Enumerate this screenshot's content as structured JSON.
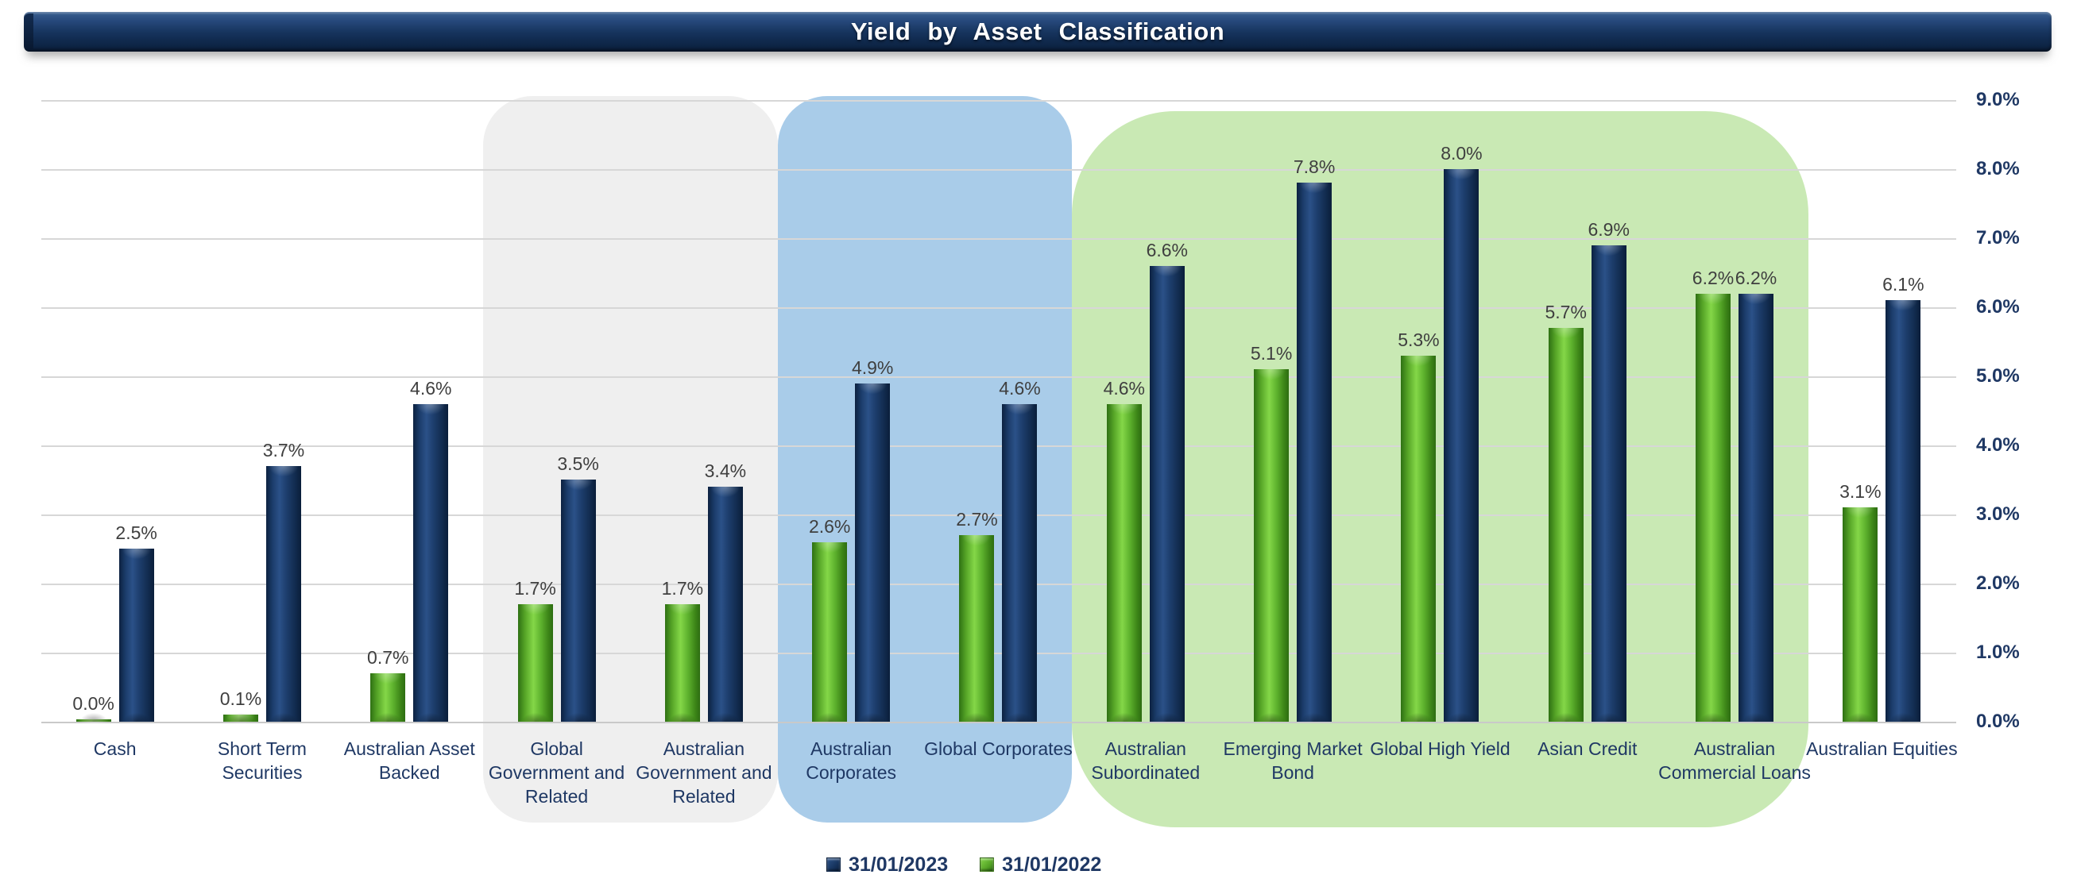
{
  "title": "Yield by Asset Classification",
  "chart_data": {
    "type": "bar",
    "title": "Yield by Asset Classification",
    "categories": [
      "Cash",
      "Short Term Securities",
      "Australian Asset Backed",
      "Global Government and Related",
      "Australian Government and Related",
      "Australian Corporates",
      "Global Corporates",
      "Australian Subordinated",
      "Emerging Market Bond",
      "Global High Yield",
      "Asian Credit",
      "Australian Commercial Loans",
      "Australian Equities"
    ],
    "series": [
      {
        "name": "31/01/2023",
        "color": "#17355f",
        "values": [
          2.5,
          3.7,
          4.6,
          3.5,
          3.4,
          4.9,
          4.6,
          6.6,
          7.8,
          8.0,
          6.9,
          6.2,
          6.1
        ],
        "value_labels": [
          "2.5%",
          "3.7%",
          "4.6%",
          "3.5%",
          "3.4%",
          "4.9%",
          "4.6%",
          "6.6%",
          "7.8%",
          "8.0%",
          "6.9%",
          "6.2%",
          "6.1%"
        ]
      },
      {
        "name": "31/01/2022",
        "color": "#56a527",
        "values": [
          0.0,
          0.1,
          0.7,
          1.7,
          1.7,
          2.6,
          2.7,
          4.6,
          5.1,
          5.3,
          5.7,
          6.2,
          3.1
        ],
        "value_labels": [
          "0.0%",
          "0.1%",
          "0.7%",
          "1.7%",
          "1.7%",
          "2.6%",
          "2.7%",
          "4.6%",
          "5.1%",
          "5.3%",
          "5.7%",
          "6.2%",
          "3.1%"
        ]
      }
    ],
    "bar_order_left_to_right": [
      "31/01/2022",
      "31/01/2023"
    ],
    "y_axis": {
      "side": "right",
      "tick_labels": [
        "0.0%",
        "1.0%",
        "2.0%",
        "3.0%",
        "4.0%",
        "5.0%",
        "6.0%",
        "7.0%",
        "8.0%",
        "9.0%"
      ],
      "ylim": [
        0,
        9
      ]
    },
    "grid": true,
    "legend_position": "bottom",
    "highlight_regions": [
      {
        "label": "government-group",
        "color": "#efefef",
        "start_index": 3,
        "end_index": 4
      },
      {
        "label": "corporates-group",
        "color": "#a9cce9",
        "start_index": 5,
        "end_index": 6
      },
      {
        "label": "higher-yield-group",
        "color": "#c9e9b4",
        "start_index": 7,
        "end_index": 11
      }
    ]
  }
}
